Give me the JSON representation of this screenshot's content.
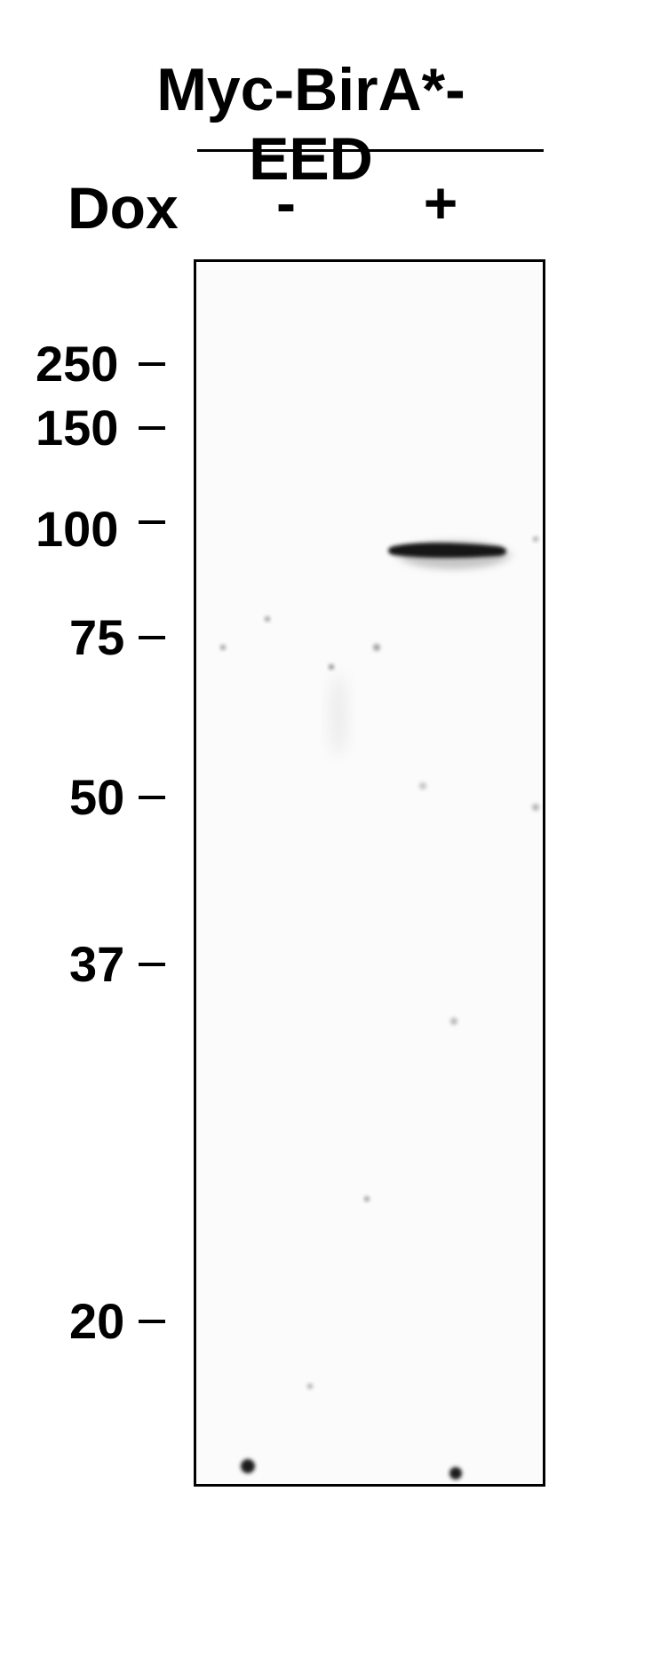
{
  "header": {
    "construct_label": "Myc-BirA*-EED",
    "treatment_label": "Dox",
    "lanes": [
      "-",
      "+"
    ]
  },
  "markers": [
    "250",
    "150",
    "100",
    "75",
    "50",
    "37",
    "20"
  ],
  "colors": {
    "band": "#111111",
    "background": "#ffffff",
    "membrane": "#fbfbfb"
  }
}
